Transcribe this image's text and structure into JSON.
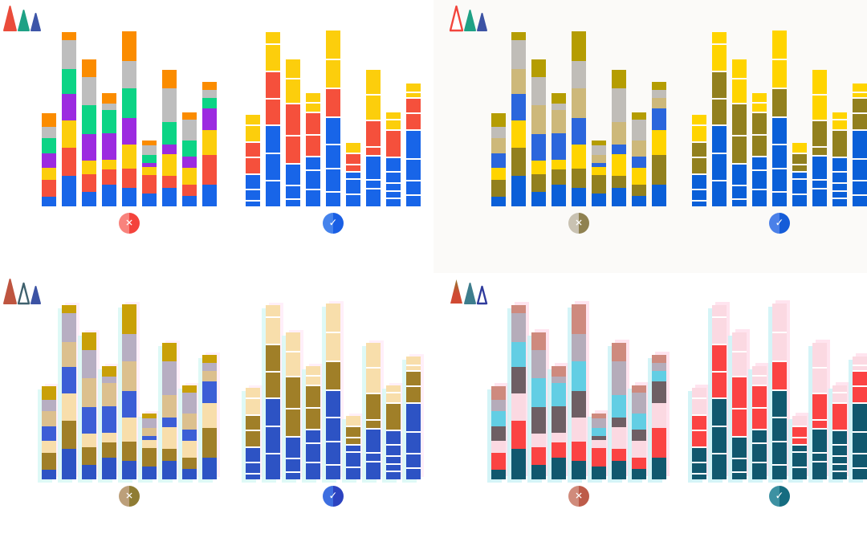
{
  "figure": {
    "description_icons": "three cone-cell icons per panel (L/M/S cones), filled = present, outlined = missing"
  },
  "chart_data": {
    "type": "bar",
    "stacked": true,
    "title": "",
    "xlabel": "",
    "ylabel": "",
    "grid": false,
    "legend": false,
    "segment_order": [
      "blue",
      "red",
      "yellow",
      "purple",
      "green",
      "gray",
      "orange"
    ],
    "units": "pixel heights, segments listed bottom-to-top",
    "dont_bars": [
      [
        12,
        21,
        15,
        18,
        19,
        14,
        17
      ],
      [
        38,
        35,
        34,
        33,
        31,
        36,
        10
      ],
      [
        18,
        22,
        17,
        33,
        36,
        35,
        22
      ],
      [
        27,
        19,
        12,
        33,
        29,
        8,
        13
      ],
      [
        23,
        24,
        30,
        33,
        37,
        34,
        37
      ],
      [
        16,
        23,
        10,
        5,
        10,
        12,
        6
      ],
      [
        23,
        15,
        27,
        12,
        28,
        42,
        23
      ],
      [
        13,
        14,
        21,
        14,
        20,
        26,
        9
      ],
      [
        27,
        37,
        31,
        27,
        13,
        10,
        10
      ]
    ],
    "do_bars": [
      [
        [
          "blue",
          6
        ],
        [
          "blue",
          12
        ],
        [
          "blue",
          17
        ],
        [
          "red",
          19
        ],
        [
          "red",
          17
        ],
        [
          "yellow",
          19
        ],
        [
          "yellow",
          12
        ]
      ],
      [
        [
          "blue",
          31
        ],
        [
          "blue",
          32
        ],
        [
          "blue",
          33
        ],
        [
          "red",
          31
        ],
        [
          "red",
          32
        ],
        [
          "yellow",
          32
        ],
        [
          "yellow",
          14
        ]
      ],
      [
        [
          "blue",
          8
        ],
        [
          "blue",
          15
        ],
        [
          "blue",
          25
        ],
        [
          "red",
          33
        ],
        [
          "red",
          38
        ],
        [
          "yellow",
          29
        ],
        [
          "yellow",
          23
        ]
      ],
      [
        [
          "blue",
          20
        ],
        [
          "blue",
          22
        ],
        [
          "blue",
          15
        ],
        [
          "red",
          25
        ],
        [
          "red",
          26
        ],
        [
          "yellow",
          10
        ],
        [
          "yellow",
          11
        ]
      ],
      [
        [
          "blue",
          17
        ],
        [
          "blue",
          27
        ],
        [
          "blue",
          28
        ],
        [
          "blue",
          32
        ],
        [
          "red",
          34
        ],
        [
          "yellow",
          34
        ],
        [
          "yellow",
          35
        ]
      ],
      [
        [
          "blue",
          14
        ],
        [
          "blue",
          17
        ],
        [
          "blue",
          7
        ],
        [
          "red",
          7
        ],
        [
          "red",
          12
        ],
        [
          "yellow",
          12
        ]
      ],
      [
        [
          "blue",
          21
        ],
        [
          "blue",
          9
        ],
        [
          "blue",
          28
        ],
        [
          "red",
          9
        ],
        [
          "red",
          31
        ],
        [
          "yellow",
          30
        ],
        [
          "yellow",
          30
        ]
      ],
      [
        [
          "blue",
          9
        ],
        [
          "blue",
          7
        ],
        [
          "blue",
          8
        ],
        [
          "blue",
          12
        ],
        [
          "blue",
          16
        ],
        [
          "red",
          32
        ],
        [
          "yellow",
          11
        ],
        [
          "yellow",
          8
        ]
      ],
      [
        [
          "blue",
          13
        ],
        [
          "blue",
          16
        ],
        [
          "blue",
          25
        ],
        [
          "blue",
          34
        ],
        [
          "red",
          19
        ],
        [
          "red",
          17
        ],
        [
          "yellow",
          5
        ],
        [
          "yellow",
          10
        ]
      ]
    ]
  },
  "panels": [
    {
      "name": "normal-trichromacy",
      "cones": [
        {
          "name": "l-cone-icon",
          "filled": true,
          "color": "#ea4c3b"
        },
        {
          "name": "m-cone-icon",
          "filled": true,
          "color": "#1fa185"
        },
        {
          "name": "s-cone-icon",
          "filled": true,
          "color": "#3d55a8"
        }
      ],
      "palette": {
        "blue": "#1865e8",
        "red": "#f5503c",
        "yellow": "#fcce0c",
        "purple": "#9c2be0",
        "green": "#0cd485",
        "gray": "#bebebe",
        "orange": "#fb8c00"
      },
      "badges": {
        "dont": {
          "symbol": "✕",
          "color": "#f4433c",
          "light": "#f8837d"
        },
        "do": {
          "symbol": "✓",
          "color": "#1a5fe4",
          "light": "#4583ec"
        }
      }
    },
    {
      "name": "protanopia-simulation",
      "cones": [
        {
          "name": "l-cone-icon-outlined",
          "filled": false,
          "color": "#f2453d"
        },
        {
          "name": "m-cone-icon",
          "filled": true,
          "color": "#1fa185"
        },
        {
          "name": "s-cone-icon",
          "filled": true,
          "color": "#3c53a4"
        }
      ],
      "palette": {
        "blue": "#0a5fd8",
        "red": "#92801e",
        "yellow": "#ffd400",
        "purple": "#2b66dc",
        "green": "#cdb87a",
        "gray": "#c0bdb8",
        "orange": "#b59d02"
      },
      "badges": {
        "dont": {
          "symbol": "✕",
          "color": "#8f8150",
          "light": "#c9c2b2"
        },
        "do": {
          "symbol": "✓",
          "color": "#155cd8",
          "light": "#4b80e8"
        }
      }
    },
    {
      "name": "deuteranopia-simulation",
      "cones": [
        {
          "name": "l-cone-icon",
          "filled": true,
          "color": "#be5540"
        },
        {
          "name": "m-cone-icon-outlined",
          "filled": false,
          "color": "#3f616e"
        },
        {
          "name": "s-cone-icon",
          "filled": true,
          "color": "#3c53a4"
        }
      ],
      "palette": {
        "blue": "#2d53c4",
        "red": "#a07f28",
        "yellow": "#f8deab",
        "purple": "#3c5ed6",
        "green": "#dcc08e",
        "gray": "#b7aec2",
        "orange": "#c9a008"
      },
      "badges": {
        "dont": {
          "symbol": "✕",
          "color": "#8f7c33",
          "light": "#bc9f7a"
        },
        "do": {
          "symbol": "✓",
          "color": "#2c43c0",
          "light": "#3e6fe0"
        }
      }
    },
    {
      "name": "tritanopia-simulation",
      "cones": [
        {
          "name": "l-cone-icon",
          "filled": true,
          "color": "#d04a33",
          "color_top": "#97752d"
        },
        {
          "name": "m-cone-icon",
          "filled": true,
          "color": "#3e7d8d"
        },
        {
          "name": "s-cone-icon-outlined",
          "filled": false,
          "color": "#2f3b9c"
        }
      ],
      "palette": {
        "blue": "#11586e",
        "red": "#fb4343",
        "yellow": "#fbd9e2",
        "purple": "#6e5f64",
        "green": "#62cee4",
        "gray": "#b5acba",
        "orange": "#ce8a7e"
      },
      "badges": {
        "dont": {
          "symbol": "✕",
          "color": "#bd5b49",
          "light": "#d08b7b"
        },
        "do": {
          "symbol": "✓",
          "color": "#156c80",
          "light": "#3d91a2"
        }
      }
    }
  ]
}
